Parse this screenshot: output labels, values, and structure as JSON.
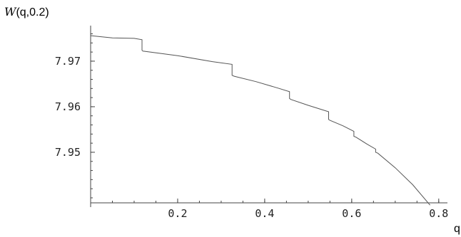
{
  "chart_data": {
    "type": "line",
    "title": "",
    "ylabel_italic": "W",
    "ylabel_rest": "(q,0.2)",
    "xlabel": "q",
    "xlim": [
      0.0,
      0.82
    ],
    "ylim": [
      7.9389,
      7.9778
    ],
    "x_origin": 0.0,
    "y_origin": 7.9389,
    "x_ticks": [
      {
        "value": 0.2,
        "label": "0.2"
      },
      {
        "value": 0.4,
        "label": "0.4"
      },
      {
        "value": 0.6,
        "label": "0.6"
      },
      {
        "value": 0.8,
        "label": "0.8"
      }
    ],
    "x_minor_step": 0.05,
    "y_ticks": [
      {
        "value": 7.95,
        "label": "7.95"
      },
      {
        "value": 7.96,
        "label": "7.96"
      },
      {
        "value": 7.97,
        "label": "7.97"
      }
    ],
    "y_minor_step": 0.002,
    "series": [
      {
        "x": [
          0.0,
          0.05,
          0.1,
          0.118,
          0.118,
          0.12,
          0.2,
          0.28,
          0.325,
          0.325,
          0.33,
          0.38,
          0.43,
          0.457,
          0.457,
          0.46,
          0.5,
          0.547,
          0.547,
          0.55,
          0.58,
          0.605,
          0.605,
          0.61,
          0.635,
          0.655,
          0.655,
          0.66,
          0.7,
          0.74,
          0.78
        ],
        "y": [
          7.9756,
          7.9751,
          7.975,
          7.9747,
          7.9724,
          7.9722,
          7.9712,
          7.9699,
          7.9693,
          7.9669,
          7.9667,
          7.9655,
          7.9641,
          7.9633,
          7.9618,
          7.9616,
          7.9603,
          7.9589,
          7.9572,
          7.957,
          7.9558,
          7.9546,
          7.9535,
          7.9533,
          7.9518,
          7.9507,
          7.95,
          7.9498,
          7.9466,
          7.9429,
          7.9384
        ]
      }
    ],
    "line_color": "#555555"
  }
}
